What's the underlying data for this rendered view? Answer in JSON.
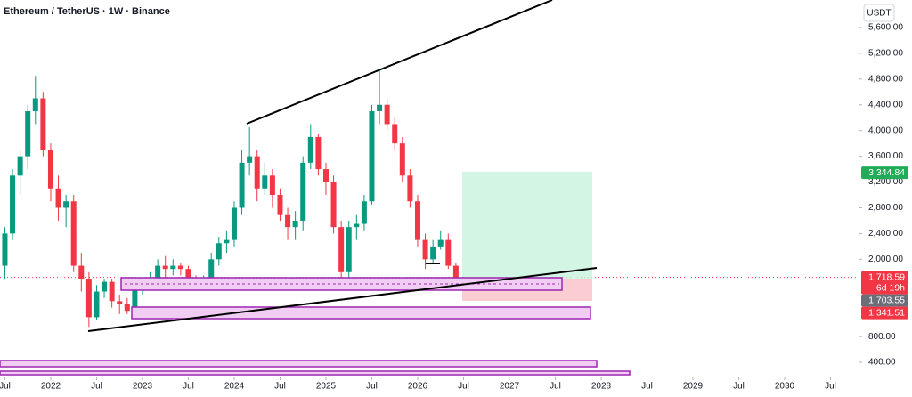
{
  "chart_data": {
    "type": "candlestick",
    "title": "Ethereum / TetherUS · 1W · Binance",
    "currency": "USDT",
    "x": [
      "2021-07",
      "2021-08",
      "2021-09",
      "2021-10",
      "2021-11",
      "2021-12",
      "2022-01",
      "2022-02",
      "2022-03",
      "2022-04",
      "2022-05",
      "2022-06",
      "2022-07",
      "2022-08",
      "2022-09",
      "2022-10",
      "2022-11",
      "2022-12",
      "2023-01",
      "2023-02",
      "2023-03",
      "2023-04",
      "2023-05",
      "2023-06",
      "2023-07",
      "2023-08",
      "2023-09",
      "2023-10",
      "2023-11",
      "2023-12",
      "2024-01",
      "2024-02",
      "2024-03",
      "2024-04",
      "2024-05",
      "2024-06",
      "2024-07",
      "2024-08",
      "2024-09",
      "2024-10",
      "2024-11",
      "2024-12",
      "2025-01",
      "2025-02",
      "2025-03",
      "2025-04",
      "2025-05",
      "2025-06",
      "2025-07",
      "2025-08",
      "2025-09",
      "2025-10",
      "2025-11",
      "2025-12",
      "2026-01",
      "2026-02",
      "2026-03",
      "2026-04",
      "2026-05",
      "2026-06"
    ],
    "open": [
      1900,
      2400,
      3300,
      3600,
      4300,
      4500,
      3700,
      3100,
      2800,
      2900,
      1900,
      1700,
      1100,
      1500,
      1650,
      1350,
      1300,
      1200,
      1550,
      1600,
      1700,
      1900,
      1850,
      1900,
      1850,
      1700,
      1650,
      1650,
      2000,
      2250,
      2300,
      2800,
      3500,
      3600,
      3100,
      3300,
      3000,
      2700,
      2500,
      2600,
      3500,
      3900,
      3400,
      3200,
      2500,
      1800,
      2500,
      2550,
      2900,
      4300,
      4400,
      4100,
      3800,
      3300,
      2900,
      2300,
      2000,
      2200,
      2300,
      1900
    ],
    "high": [
      2500,
      3400,
      3700,
      4400,
      4850,
      4600,
      3800,
      3300,
      3000,
      3000,
      2100,
      1800,
      1600,
      1700,
      1700,
      1450,
      1400,
      1650,
      1700,
      1800,
      2000,
      2050,
      2000,
      1950,
      1900,
      1750,
      1750,
      2100,
      2350,
      2450,
      2900,
      3700,
      4050,
      3700,
      3500,
      3400,
      3100,
      2800,
      2750,
      3600,
      4100,
      3950,
      3500,
      3300,
      2600,
      2600,
      2700,
      3000,
      4400,
      4950,
      4500,
      4200,
      3900,
      3400,
      3000,
      2400,
      2300,
      2450,
      2400,
      1950
    ],
    "low": [
      1700,
      2300,
      3000,
      3400,
      4100,
      3600,
      2900,
      2600,
      2500,
      1800,
      1500,
      950,
      1050,
      1400,
      1250,
      1150,
      1150,
      1150,
      1450,
      1550,
      1650,
      1700,
      1750,
      1750,
      1550,
      1550,
      1520,
      1600,
      1900,
      2100,
      2200,
      2700,
      3300,
      2900,
      3000,
      2800,
      2600,
      2300,
      2300,
      2450,
      3400,
      3300,
      3000,
      2400,
      1550,
      1700,
      2300,
      2450,
      2850,
      4100,
      4000,
      3700,
      3200,
      2800,
      2200,
      1850,
      1950,
      2150,
      1850,
      1700
    ],
    "close": [
      2400,
      3300,
      3600,
      4300,
      4500,
      3700,
      3100,
      2800,
      2900,
      1900,
      1700,
      1100,
      1500,
      1650,
      1350,
      1300,
      1200,
      1550,
      1600,
      1700,
      1900,
      1850,
      1900,
      1850,
      1700,
      1650,
      1650,
      2000,
      2250,
      2300,
      2800,
      3500,
      3600,
      3100,
      3300,
      3000,
      2700,
      2500,
      2600,
      3500,
      3900,
      3400,
      3200,
      2500,
      1800,
      2500,
      2550,
      2900,
      4300,
      4400,
      4100,
      3800,
      3300,
      2900,
      2300,
      2000,
      2200,
      2300,
      1900,
      1718.59
    ],
    "up_color": "#089981",
    "down_color": "#f23645",
    "xlim": [
      2021.447,
      2030.767
    ],
    "xticks": [
      {
        "value": 2021.5,
        "label": "Jul"
      },
      2022,
      {
        "value": 2022.5,
        "label": "Jul"
      },
      2023,
      {
        "value": 2023.5,
        "label": "Jul"
      },
      2024,
      {
        "value": 2024.5,
        "label": "Jul"
      },
      2025,
      {
        "value": 2025.5,
        "label": "Jul"
      },
      2026,
      {
        "value": 2026.5,
        "label": "Jul"
      },
      2027,
      {
        "value": 2027.5,
        "label": "Jul"
      },
      2028,
      {
        "value": 2028.5,
        "label": "Jul"
      },
      2029,
      {
        "value": 2029.5,
        "label": "Jul"
      },
      2030,
      {
        "value": 2030.5,
        "label": "Jul"
      }
    ],
    "ylim": [
      221,
      6028
    ],
    "yticks": [
      {
        "value": 5600,
        "label": "5,600.00"
      },
      {
        "value": 5200,
        "label": "5,200.00"
      },
      {
        "value": 4800,
        "label": "4,800.00"
      },
      {
        "value": 4400,
        "label": "4,400.00"
      },
      {
        "value": 4000,
        "label": "4,000.00"
      },
      {
        "value": 3600,
        "label": "3,600.00"
      },
      {
        "value": 3200,
        "label": "3,200.00"
      },
      {
        "value": 2800,
        "label": "2,800.00"
      },
      {
        "value": 2400,
        "label": "2,400.00"
      },
      {
        "value": 2000,
        "label": "2,000.00"
      },
      {
        "value": 800,
        "label": "800.00"
      },
      {
        "value": 400,
        "label": "400.00"
      }
    ],
    "price_labels": [
      {
        "value": 3344.84,
        "label": "3,344.84",
        "color": "#22ab58"
      },
      {
        "value": 1718.59,
        "label": "1,718.59",
        "color": "#f23645",
        "countdown": "6d 19h"
      },
      {
        "value": 1703.55,
        "label": "1,703.55",
        "color": "#6b6e76"
      },
      {
        "value": 1341.51,
        "label": "1,341.51",
        "color": "#f23645"
      }
    ]
  }
}
